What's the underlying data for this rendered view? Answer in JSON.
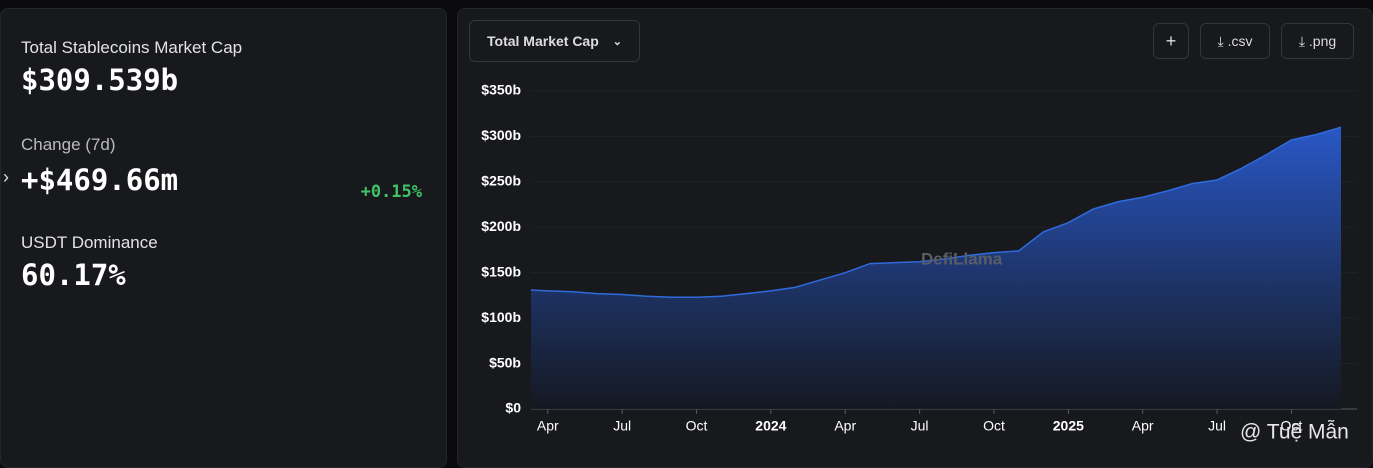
{
  "stats": [
    {
      "label": "Total Stablecoins Market Cap",
      "value": "$309.539b"
    },
    {
      "label": "Change (7d)",
      "value": "+$469.66m",
      "change": "+0.15%"
    },
    {
      "label": "USDT Dominance",
      "value": "60.17%"
    }
  ],
  "buttons": {
    "metric": "Total Market Cap",
    "add": "+",
    "csv": ".csv",
    "png": ".png"
  },
  "watermark": "DefiLlama",
  "credit": "@ Tuệ Mẫn",
  "chart_data": {
    "type": "area",
    "color": "#2f6bdc",
    "categories": [
      null,
      "Apr",
      null,
      null,
      "Jul",
      null,
      null,
      "Oct",
      null,
      null,
      "2024",
      null,
      null,
      "Apr",
      null,
      null,
      "Jul",
      null,
      null,
      "Oct",
      null,
      null,
      "2025",
      null,
      null,
      "Apr",
      null,
      null,
      "Jul",
      null,
      null,
      "Oct",
      null,
      null
    ],
    "values": [
      131,
      130,
      129,
      127,
      126,
      124,
      123,
      123,
      124,
      127,
      130,
      134,
      142,
      150,
      160,
      161,
      162,
      165,
      169,
      172,
      174,
      195,
      205,
      220,
      228,
      233,
      240,
      248,
      252,
      265,
      280,
      296,
      302,
      310
    ],
    "ylim": [
      0,
      362
    ],
    "yticks": [
      {
        "value": 0,
        "label": "$0"
      },
      {
        "value": 50,
        "label": "$50b"
      },
      {
        "value": 100,
        "label": "$100b"
      },
      {
        "value": 150,
        "label": "$150b"
      },
      {
        "value": 200,
        "label": "$200b"
      },
      {
        "value": 250,
        "label": "$250b"
      },
      {
        "value": 300,
        "label": "$300b"
      },
      {
        "value": 350,
        "label": "$350b"
      }
    ],
    "grid": true
  }
}
